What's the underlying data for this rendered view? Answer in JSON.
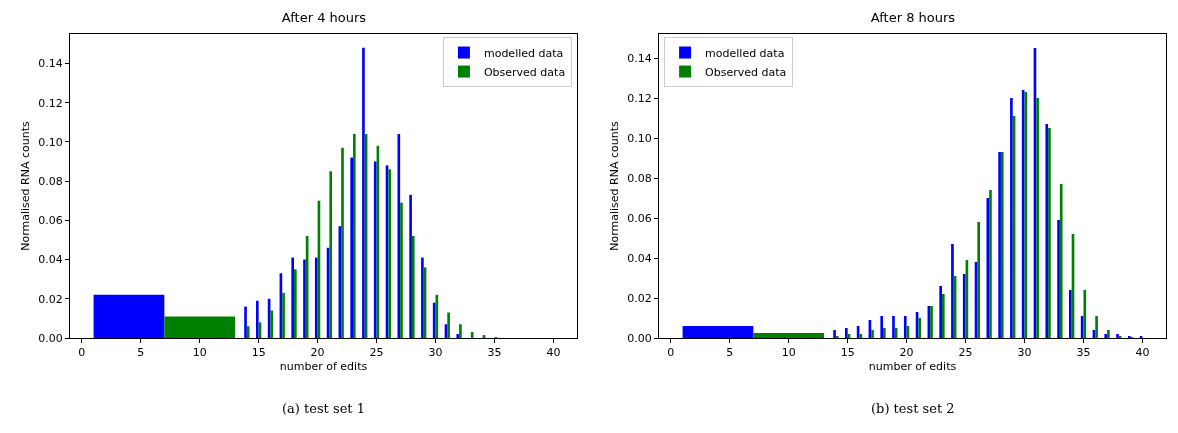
{
  "chart_data": [
    {
      "type": "histogram",
      "title": "After 4 hours",
      "xlabel": "number of edits",
      "ylabel": "Normalised RNA counts",
      "annotations": [
        "(a) test set 1"
      ],
      "bins": [
        1,
        13,
        13.5,
        14.5,
        15.5,
        16.5,
        17.5,
        18.5,
        19.5,
        20.5,
        21.5,
        22.5,
        23.5,
        24.5,
        25.5,
        26.5,
        27.5,
        28.5,
        29.5,
        30.5,
        31.5,
        32.5,
        33.5,
        34.5,
        35.5
      ],
      "series": [
        {
          "name": "modelled data",
          "color": "#0000ff",
          "values": [
            0.022,
            0,
            0.016,
            0.019,
            0.02,
            0.033,
            0.041,
            0.04,
            0.041,
            0.046,
            0.057,
            0.092,
            0.148,
            0.09,
            0.088,
            0.104,
            0.073,
            0.041,
            0.018,
            0.007,
            0.002,
            0,
            0,
            0
          ]
        },
        {
          "name": "Observed data",
          "color": "#008000",
          "values": [
            0.011,
            0,
            0.006,
            0.008,
            0.014,
            0.023,
            0.035,
            0.052,
            0.07,
            0.085,
            0.097,
            0.104,
            0.104,
            0.098,
            0.086,
            0.069,
            0.052,
            0.036,
            0.022,
            0.013,
            0.007,
            0.003,
            0.0015,
            0.0005
          ]
        }
      ],
      "xlim": [
        -1,
        42
      ],
      "xticks": [
        0,
        5,
        10,
        15,
        20,
        25,
        30,
        35,
        40
      ],
      "ylim": [
        0,
        0.155
      ],
      "yticks": [
        {
          "value": 0,
          "label": "0.00"
        },
        {
          "value": 0.02,
          "label": "0.02"
        },
        {
          "value": 0.04,
          "label": "0.04"
        },
        {
          "value": 0.06,
          "label": "0.06"
        },
        {
          "value": 0.08,
          "label": "0.08"
        },
        {
          "value": 0.1,
          "label": "0.10"
        },
        {
          "value": 0.12,
          "label": "0.12"
        },
        {
          "value": 0.14,
          "label": "0.14"
        }
      ],
      "grid": false,
      "legend": "top right"
    },
    {
      "type": "histogram",
      "title": "After 8 hours",
      "xlabel": "number of edits",
      "ylabel": "Normalised RNA counts",
      "annotations": [
        "(b) test set 2"
      ],
      "bins": [
        1,
        13,
        13.5,
        14.5,
        15.5,
        16.5,
        17.5,
        18.5,
        19.5,
        20.5,
        21.5,
        22.5,
        23.5,
        24.5,
        25.5,
        26.5,
        27.5,
        28.5,
        29.5,
        30.5,
        31.5,
        32.5,
        33.5,
        34.5,
        35.5,
        36.5,
        37.5,
        38.5,
        39.5,
        40.5
      ],
      "series": [
        {
          "name": "modelled data",
          "color": "#0000ff",
          "values": [
            0.006,
            0,
            0.004,
            0.005,
            0.006,
            0.009,
            0.011,
            0.011,
            0.011,
            0.013,
            0.016,
            0.026,
            0.047,
            0.032,
            0.038,
            0.07,
            0.093,
            0.12,
            0.124,
            0.145,
            0.107,
            0.059,
            0.024,
            0.011,
            0.004,
            0.002,
            0.002,
            0.001,
            0.001
          ]
        },
        {
          "name": "Observed data",
          "color": "#008000",
          "values": [
            0.0025,
            0,
            0.001,
            0.002,
            0.002,
            0.004,
            0.005,
            0.005,
            0.006,
            0.01,
            0.016,
            0.022,
            0.031,
            0.039,
            0.058,
            0.074,
            0.093,
            0.111,
            0.123,
            0.12,
            0.105,
            0.077,
            0.052,
            0.024,
            0.011,
            0.004,
            0.001,
            0.0003,
            0
          ]
        }
      ],
      "xlim": [
        -1,
        42
      ],
      "xticks": [
        0,
        5,
        10,
        15,
        20,
        25,
        30,
        35,
        40
      ],
      "ylim": [
        0,
        0.152
      ],
      "yticks": [
        {
          "value": 0,
          "label": "0.00"
        },
        {
          "value": 0.02,
          "label": "0.02"
        },
        {
          "value": 0.04,
          "label": "0.04"
        },
        {
          "value": 0.06,
          "label": "0.06"
        },
        {
          "value": 0.08,
          "label": "0.08"
        },
        {
          "value": 0.1,
          "label": "0.10"
        },
        {
          "value": 0.12,
          "label": "0.12"
        },
        {
          "value": 0.14,
          "label": "0.14"
        }
      ],
      "grid": false,
      "legend": "top left"
    }
  ]
}
